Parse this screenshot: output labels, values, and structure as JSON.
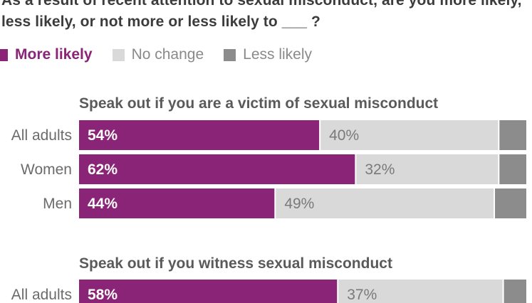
{
  "title": "As a result of recent attention to sexual misconduct, are you more likely, less likely, or not more or less likely to ___ ?",
  "colors": {
    "more": "#8a2476",
    "no_change": "#d9d9d9",
    "less": "#8c8c8c"
  },
  "legend": [
    {
      "key": "more",
      "label": "More likely"
    },
    {
      "key": "no_change",
      "label": "No change"
    },
    {
      "key": "less",
      "label": "Less likely"
    }
  ],
  "chart_data": {
    "type": "bar",
    "orientation": "horizontal",
    "stacked": true,
    "value_suffix": "%",
    "groups": [
      {
        "title": "Speak out if you are a victim of sexual misconduct",
        "categories": [
          "All adults",
          "Women",
          "Men"
        ],
        "series": [
          {
            "name": "More likely",
            "values": [
              54,
              62,
              44
            ]
          },
          {
            "name": "No change",
            "values": [
              40,
              32,
              49
            ]
          },
          {
            "name": "Less likely",
            "values": [
              6,
              6,
              7
            ]
          }
        ]
      },
      {
        "title": "Speak out if you witness sexual misconduct",
        "categories": [
          "All adults"
        ],
        "series": [
          {
            "name": "More likely",
            "values": [
              58
            ]
          },
          {
            "name": "No change",
            "values": [
              37
            ]
          },
          {
            "name": "Less likely",
            "values": [
              5
            ]
          }
        ]
      }
    ]
  }
}
